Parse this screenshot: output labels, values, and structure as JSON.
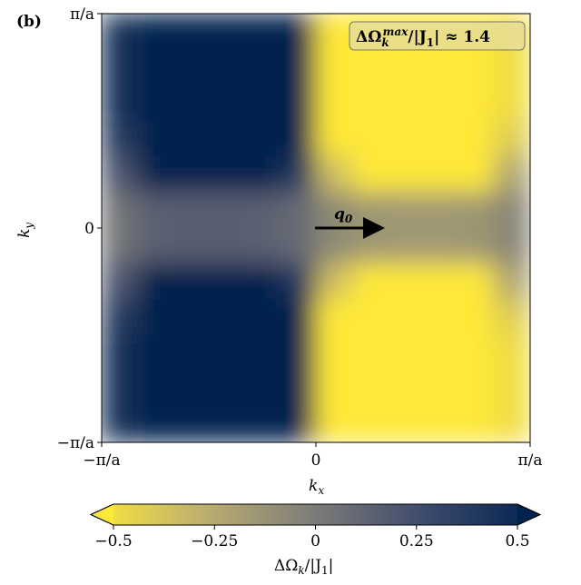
{
  "panel_label": "(b)",
  "chart_data": {
    "type": "heatmap",
    "xlabel": {
      "base": "k",
      "sub": "x"
    },
    "ylabel": {
      "base": "k",
      "sub": "y"
    },
    "xlim": [
      -3.14159,
      3.14159
    ],
    "ylim": [
      -3.14159,
      3.14159
    ],
    "xticks": [
      {
        "value": -3.14159,
        "label": "−π/a"
      },
      0,
      {
        "value": 3.14159,
        "label": "π/a"
      }
    ],
    "yticks": [
      {
        "value": -3.14159,
        "label": "−π/a"
      },
      0,
      {
        "value": 3.14159,
        "label": "π/a"
      }
    ],
    "z": [
      [
        0.4,
        1.3,
        1.4,
        1.4,
        1.3,
        0.8,
        -0.7,
        -1.3,
        -1.4,
        -1.4,
        -1.3,
        -0.45
      ],
      [
        0.4,
        1.3,
        1.4,
        1.4,
        1.3,
        0.8,
        -0.7,
        -1.3,
        -1.4,
        -1.4,
        -1.3,
        -0.45
      ],
      [
        0.4,
        1.3,
        1.4,
        1.4,
        1.3,
        0.8,
        -0.7,
        -1.3,
        -1.4,
        -1.4,
        -1.3,
        -0.45
      ],
      [
        0.34,
        1.11,
        1.19,
        1.19,
        1.11,
        0.68,
        -0.6,
        -1.11,
        -1.19,
        -1.19,
        -1.11,
        -0.38
      ],
      [
        0.18,
        0.59,
        0.63,
        0.63,
        0.59,
        0.36,
        -0.32,
        -0.59,
        -0.63,
        -0.63,
        -0.59,
        -0.2
      ],
      [
        0.04,
        0.13,
        0.14,
        0.14,
        0.13,
        0.08,
        -0.07,
        -0.13,
        -0.14,
        -0.14,
        -0.13,
        -0.05
      ],
      [
        0.04,
        0.13,
        0.14,
        0.14,
        0.13,
        0.08,
        -0.07,
        -0.13,
        -0.14,
        -0.14,
        -0.13,
        -0.05
      ],
      [
        0.18,
        0.59,
        0.63,
        0.63,
        0.59,
        0.36,
        -0.32,
        -0.59,
        -0.63,
        -0.63,
        -0.59,
        -0.2
      ],
      [
        0.34,
        1.11,
        1.19,
        1.19,
        1.11,
        0.68,
        -0.6,
        -1.11,
        -1.19,
        -1.19,
        -1.11,
        -0.38
      ],
      [
        0.4,
        1.3,
        1.4,
        1.4,
        1.3,
        0.8,
        -0.7,
        -1.3,
        -1.4,
        -1.4,
        -1.3,
        -0.45
      ],
      [
        0.4,
        1.3,
        1.4,
        1.4,
        1.3,
        0.8,
        -0.7,
        -1.3,
        -1.4,
        -1.4,
        -1.3,
        -0.45
      ],
      [
        0.4,
        1.3,
        1.4,
        1.4,
        1.3,
        0.8,
        -0.7,
        -1.3,
        -1.4,
        -1.4,
        -1.3,
        -0.45
      ]
    ],
    "colormap": [
      "#fee838",
      "#bcaf6f",
      "#7c7b78",
      "#3b496c",
      "#00224e"
    ],
    "zlim": [
      -0.5,
      0.5
    ],
    "colorbar_ticks": [
      {
        "value": -0.5,
        "label": "−0.5"
      },
      {
        "value": -0.25,
        "label": "−0.25"
      },
      0,
      0.25,
      0.5
    ],
    "colorbar_label": {
      "base": "ΔΩ",
      "sub": "k",
      "mid": "/|J",
      "sub2": "1",
      "end": "|"
    },
    "annotation": {
      "base": "ΔΩ",
      "sub": "k",
      "sup": "max",
      "mid": "/|J",
      "sub2": "1",
      "end": "| ≈ 1.4"
    },
    "arrow_label": {
      "base": "q",
      "sub": "0"
    }
  }
}
